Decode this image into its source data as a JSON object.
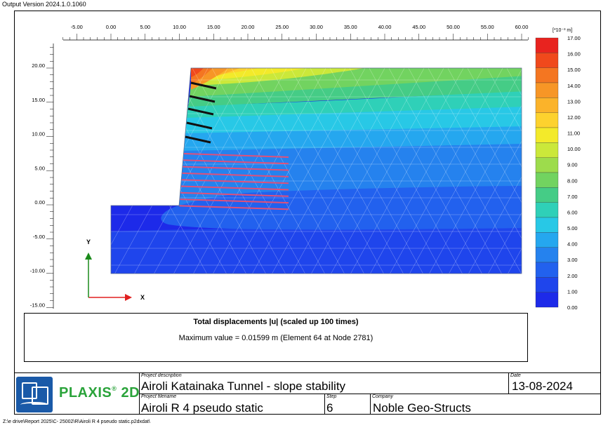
{
  "version_text": "Output Version 2024.1.0.1060",
  "unit_label": "[*10⁻³ m]",
  "x_ticks": [
    "-5.00",
    "0.00",
    "5.00",
    "10.00",
    "15.00",
    "20.00",
    "25.00",
    "30.00",
    "35.00",
    "40.00",
    "45.00",
    "50.00",
    "55.00",
    "60.00"
  ],
  "y_ticks": [
    "20.00",
    "15.00",
    "10.00",
    "5.00",
    "0.00",
    "-5.00",
    "-10.00",
    "-15.00"
  ],
  "legend_levels": [
    "17.00",
    "16.00",
    "15.00",
    "14.00",
    "13.00",
    "12.00",
    "11.00",
    "10.00",
    "9.00",
    "8.00",
    "7.00",
    "6.00",
    "5.00",
    "4.00",
    "3.00",
    "2.00",
    "1.00",
    "0.00"
  ],
  "legend_colors": [
    "#e8231f",
    "#f0491c",
    "#f47621",
    "#f79626",
    "#fbb32a",
    "#fdd22e",
    "#f3ea2a",
    "#cbe83a",
    "#9ddc4c",
    "#72d360",
    "#45cc86",
    "#2fd0b8",
    "#28c8e6",
    "#25a7ef",
    "#2582ee",
    "#2261ee",
    "#1f45ec",
    "#1d2ae9"
  ],
  "axis": {
    "x_label": "X",
    "y_label": "Y"
  },
  "caption": {
    "title": "Total displacements |u| (scaled up 100 times)",
    "value": "Maximum value = 0.01599 m (Element 64 at Node 2781)"
  },
  "footer": {
    "logo_text": "PLAXIS",
    "logo_suffix": "2D",
    "project_description_label": "Project description",
    "project_description": "Airoli Katainaka Tunnel - slope stability",
    "date_label": "Date",
    "date": "13-08-2024",
    "project_filename_label": "Project filename",
    "project_filename": "Airoli R 4 pseudo static",
    "step_label": "Step",
    "step": "6",
    "company_label": "Company",
    "company": "Noble Geo-Structs"
  },
  "file_path": "Z:\\e drive\\Report 2025\\C- 25002\\R\\Airoli R 4 pseudo static.p2dxdat\\",
  "colors": {
    "axis_arrow_x": "#e02020",
    "axis_arrow_y": "#1a8a1a",
    "anchor": "#111111",
    "geogrid": "#e0507a",
    "logo_green": "#2aa33a",
    "logo_blue": "#1a5aa8"
  }
}
